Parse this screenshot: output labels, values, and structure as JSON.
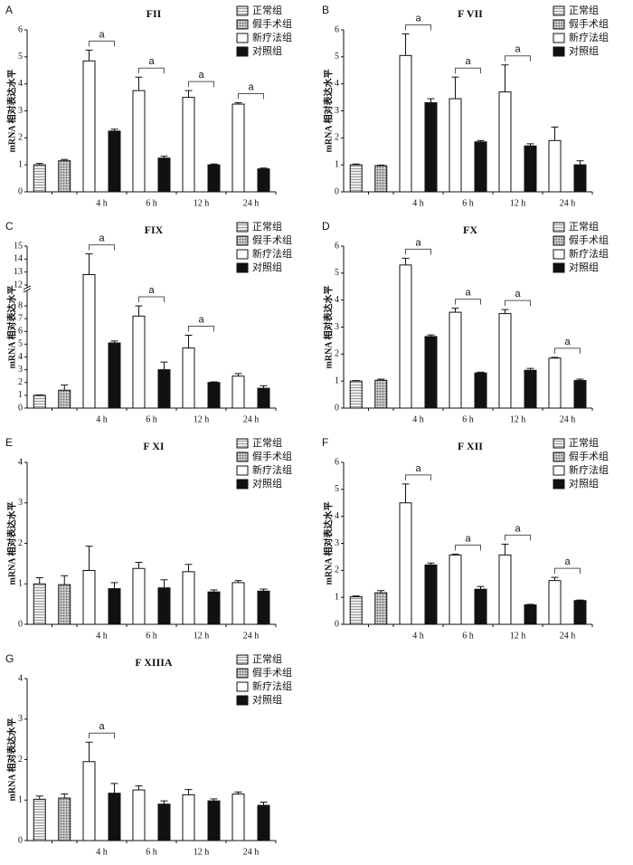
{
  "chart_data": [
    {
      "type": "bar",
      "panel": "A",
      "title": "FII",
      "ylabel": "mRNA 相对表达水平",
      "categories": [
        null,
        null,
        "4 h",
        "6 h",
        "12 h",
        "24 h"
      ],
      "ylim": [
        0,
        6
      ],
      "yticks": [
        0,
        1,
        2,
        3,
        4,
        5,
        6
      ],
      "annotations": [
        null,
        null,
        "a",
        "a",
        "a",
        "a"
      ],
      "series": [
        {
          "name": "正常组",
          "color": "#d8d8d8",
          "pattern": "stripes",
          "values": [
            1.0,
            null,
            null,
            null,
            null,
            null
          ],
          "errors": [
            0.05,
            null,
            null,
            null,
            null,
            null
          ]
        },
        {
          "name": "假手术组",
          "color": "#9a9a9a",
          "pattern": "dots",
          "values": [
            null,
            1.15,
            null,
            null,
            null,
            null
          ],
          "errors": [
            null,
            0.05,
            null,
            null,
            null,
            null
          ]
        },
        {
          "name": "新疗法组",
          "color": "#ffffff",
          "pattern": "none",
          "values": [
            null,
            null,
            4.85,
            3.75,
            3.5,
            3.25
          ],
          "errors": [
            null,
            null,
            0.4,
            0.5,
            0.25,
            0.05
          ]
        },
        {
          "name": "对照组",
          "color": "#111111",
          "pattern": "none",
          "values": [
            null,
            null,
            2.25,
            1.25,
            1.0,
            0.85
          ],
          "errors": [
            null,
            null,
            0.07,
            0.07,
            0.03,
            0.03
          ]
        }
      ]
    },
    {
      "type": "bar",
      "panel": "B",
      "title": "F VII",
      "ylabel": "mRNA 相对表达水平",
      "categories": [
        null,
        null,
        "4 h",
        "6 h",
        "12 h",
        "24 h"
      ],
      "ylim": [
        0,
        6
      ],
      "yticks": [
        0,
        1,
        2,
        3,
        4,
        5,
        6
      ],
      "annotations": [
        null,
        null,
        "a",
        "a",
        "a",
        null
      ],
      "series": [
        {
          "name": "正常组",
          "color": "#d8d8d8",
          "pattern": "stripes",
          "values": [
            1.0,
            null,
            null,
            null,
            null,
            null
          ],
          "errors": [
            0.03,
            null,
            null,
            null,
            null,
            null
          ]
        },
        {
          "name": "假手术组",
          "color": "#9a9a9a",
          "pattern": "dots",
          "values": [
            null,
            0.97,
            null,
            null,
            null,
            null
          ],
          "errors": [
            null,
            0.02,
            null,
            null,
            null,
            null
          ]
        },
        {
          "name": "新疗法组",
          "color": "#ffffff",
          "pattern": "none",
          "values": [
            null,
            null,
            5.05,
            3.45,
            3.7,
            1.9
          ],
          "errors": [
            null,
            null,
            0.8,
            0.8,
            1.0,
            0.5
          ]
        },
        {
          "name": "对照组",
          "color": "#111111",
          "pattern": "none",
          "values": [
            null,
            null,
            3.3,
            1.85,
            1.7,
            1.0
          ],
          "errors": [
            null,
            null,
            0.15,
            0.05,
            0.08,
            0.15
          ]
        }
      ]
    },
    {
      "type": "bar",
      "panel": "C",
      "title": "FIX",
      "ylabel": "mRNA 相对表达水平",
      "categories": [
        null,
        null,
        "4 h",
        "6 h",
        "12 h",
        "24 h"
      ],
      "ylim": [
        0,
        15
      ],
      "ybreak": [
        9,
        12
      ],
      "yticks": [
        0,
        1,
        2,
        3,
        4,
        5,
        6,
        7,
        8,
        12,
        13,
        14,
        15
      ],
      "annotations": [
        null,
        null,
        "a",
        "a",
        "a",
        null
      ],
      "series": [
        {
          "name": "正常组",
          "color": "#d8d8d8",
          "pattern": "stripes",
          "values": [
            1.0,
            null,
            null,
            null,
            null,
            null
          ],
          "errors": [
            0.03,
            null,
            null,
            null,
            null,
            null
          ]
        },
        {
          "name": "假手术组",
          "color": "#9a9a9a",
          "pattern": "dots",
          "values": [
            null,
            1.4,
            null,
            null,
            null,
            null
          ],
          "errors": [
            null,
            0.4,
            null,
            null,
            null,
            null
          ]
        },
        {
          "name": "新疗法组",
          "color": "#ffffff",
          "pattern": "none",
          "values": [
            null,
            null,
            12.8,
            7.2,
            4.7,
            2.5
          ],
          "errors": [
            null,
            null,
            1.6,
            0.8,
            1.0,
            0.2
          ]
        },
        {
          "name": "对照组",
          "color": "#111111",
          "pattern": "none",
          "values": [
            null,
            null,
            5.1,
            3.0,
            2.0,
            1.55
          ],
          "errors": [
            null,
            null,
            0.15,
            0.6,
            0.05,
            0.2
          ]
        }
      ]
    },
    {
      "type": "bar",
      "panel": "D",
      "title": "FX",
      "ylabel": "mRNA 相对表达水平",
      "categories": [
        null,
        null,
        "4 h",
        "6 h",
        "12 h",
        "24 h"
      ],
      "ylim": [
        0,
        6
      ],
      "yticks": [
        0,
        1,
        2,
        3,
        4,
        5,
        6
      ],
      "annotations": [
        null,
        null,
        "a",
        "a",
        "a",
        "a"
      ],
      "series": [
        {
          "name": "正常组",
          "color": "#d8d8d8",
          "pattern": "stripes",
          "values": [
            1.0,
            null,
            null,
            null,
            null,
            null
          ],
          "errors": [
            0.02,
            null,
            null,
            null,
            null,
            null
          ]
        },
        {
          "name": "假手术组",
          "color": "#9a9a9a",
          "pattern": "dots",
          "values": [
            null,
            1.03,
            null,
            null,
            null,
            null
          ],
          "errors": [
            null,
            0.04,
            null,
            null,
            null,
            null
          ]
        },
        {
          "name": "新疗法组",
          "color": "#ffffff",
          "pattern": "none",
          "values": [
            null,
            null,
            5.3,
            3.55,
            3.5,
            1.85
          ],
          "errors": [
            null,
            null,
            0.25,
            0.15,
            0.15,
            0.03
          ]
        },
        {
          "name": "对照组",
          "color": "#111111",
          "pattern": "none",
          "values": [
            null,
            null,
            2.65,
            1.3,
            1.4,
            1.02
          ],
          "errors": [
            null,
            null,
            0.06,
            0.03,
            0.07,
            0.05
          ]
        }
      ]
    },
    {
      "type": "bar",
      "panel": "E",
      "title": "F XI",
      "ylabel": "mRNA 相对表达水平",
      "categories": [
        null,
        null,
        "4 h",
        "6 h",
        "12 h",
        "24 h"
      ],
      "ylim": [
        0,
        4
      ],
      "yticks": [
        0,
        1,
        2,
        3,
        4
      ],
      "series": [
        {
          "name": "正常组",
          "color": "#d8d8d8",
          "pattern": "stripes",
          "values": [
            1.0,
            null,
            null,
            null,
            null,
            null
          ],
          "errors": [
            0.15,
            null,
            null,
            null,
            null,
            null
          ]
        },
        {
          "name": "假手术组",
          "color": "#9a9a9a",
          "pattern": "dots",
          "values": [
            null,
            0.98,
            null,
            null,
            null,
            null
          ],
          "errors": [
            null,
            0.22,
            null,
            null,
            null,
            null
          ]
        },
        {
          "name": "新疗法组",
          "color": "#ffffff",
          "pattern": "none",
          "values": [
            null,
            null,
            1.33,
            1.38,
            1.3,
            1.03
          ],
          "errors": [
            null,
            null,
            0.6,
            0.15,
            0.18,
            0.05
          ]
        },
        {
          "name": "对照组",
          "color": "#111111",
          "pattern": "none",
          "values": [
            null,
            null,
            0.88,
            0.9,
            0.8,
            0.82
          ],
          "errors": [
            null,
            null,
            0.15,
            0.2,
            0.05,
            0.05
          ]
        }
      ]
    },
    {
      "type": "bar",
      "panel": "F",
      "title": "F XII",
      "ylabel": "mRNA 相对表达水平",
      "categories": [
        null,
        null,
        "4 h",
        "6 h",
        "12 h",
        "24 h"
      ],
      "ylim": [
        0,
        6
      ],
      "yticks": [
        0,
        1,
        2,
        3,
        4,
        5,
        6
      ],
      "annotations": [
        null,
        null,
        "a",
        "a",
        "a",
        "a"
      ],
      "series": [
        {
          "name": "正常组",
          "color": "#d8d8d8",
          "pattern": "stripes",
          "values": [
            1.02,
            null,
            null,
            null,
            null,
            null
          ],
          "errors": [
            0.03,
            null,
            null,
            null,
            null,
            null
          ]
        },
        {
          "name": "假手术组",
          "color": "#9a9a9a",
          "pattern": "dots",
          "values": [
            null,
            1.17,
            null,
            null,
            null,
            null
          ],
          "errors": [
            null,
            0.08,
            null,
            null,
            null,
            null
          ]
        },
        {
          "name": "新疗法组",
          "color": "#ffffff",
          "pattern": "none",
          "values": [
            null,
            null,
            4.5,
            2.57,
            2.57,
            1.62
          ],
          "errors": [
            null,
            null,
            0.7,
            0.03,
            0.4,
            0.12
          ]
        },
        {
          "name": "对照组",
          "color": "#111111",
          "pattern": "none",
          "values": [
            null,
            null,
            2.2,
            1.3,
            0.72,
            0.88
          ],
          "errors": [
            null,
            null,
            0.07,
            0.1,
            0.02,
            0.02
          ]
        }
      ]
    },
    {
      "type": "bar",
      "panel": "G",
      "title": "F XIIIA",
      "ylabel": "mRNA 相对表达水平",
      "categories": [
        null,
        null,
        "4 h",
        "6 h",
        "12 h",
        "24 h"
      ],
      "ylim": [
        0,
        4
      ],
      "yticks": [
        0,
        1,
        2,
        3,
        4
      ],
      "annotations": [
        null,
        null,
        "a",
        null,
        null,
        null
      ],
      "series": [
        {
          "name": "正常组",
          "color": "#d8d8d8",
          "pattern": "stripes",
          "values": [
            1.02,
            null,
            null,
            null,
            null,
            null
          ],
          "errors": [
            0.08,
            null,
            null,
            null,
            null,
            null
          ]
        },
        {
          "name": "假手术组",
          "color": "#9a9a9a",
          "pattern": "dots",
          "values": [
            null,
            1.05,
            null,
            null,
            null,
            null
          ],
          "errors": [
            null,
            0.1,
            null,
            null,
            null,
            null
          ]
        },
        {
          "name": "新疗法组",
          "color": "#ffffff",
          "pattern": "none",
          "values": [
            null,
            null,
            1.95,
            1.25,
            1.13,
            1.15
          ],
          "errors": [
            null,
            null,
            0.48,
            0.1,
            0.13,
            0.05
          ]
        },
        {
          "name": "对照组",
          "color": "#111111",
          "pattern": "none",
          "values": [
            null,
            null,
            1.17,
            0.9,
            0.98,
            0.87
          ],
          "errors": [
            null,
            null,
            0.24,
            0.08,
            0.05,
            0.08
          ]
        }
      ]
    }
  ]
}
